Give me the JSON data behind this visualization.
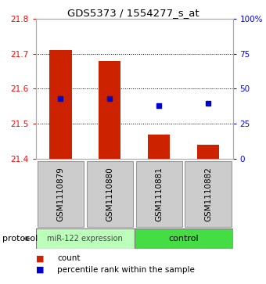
{
  "title": "GDS5373 / 1554277_s_at",
  "samples": [
    "GSM1110879",
    "GSM1110880",
    "GSM1110881",
    "GSM1110882"
  ],
  "bar_bottoms": [
    21.4,
    21.4,
    21.4,
    21.4
  ],
  "bar_tops": [
    21.71,
    21.68,
    21.47,
    21.44
  ],
  "percentile_values": [
    21.572,
    21.572,
    21.553,
    21.558
  ],
  "bar_color": "#cc2200",
  "percentile_color": "#0000cc",
  "ylim_left": [
    21.4,
    21.8
  ],
  "ylim_right": [
    0,
    100
  ],
  "yticks_left": [
    21.4,
    21.5,
    21.6,
    21.7,
    21.8
  ],
  "yticks_right": [
    0,
    25,
    50,
    75,
    100
  ],
  "ytick_labels_right": [
    "0",
    "25",
    "50",
    "75",
    "100%"
  ],
  "group0_label": "miR-122 expression",
  "group1_label": "control",
  "group0_color": "#bbffbb",
  "group1_color": "#44dd44",
  "group_label_prefix": "protocol",
  "background_color": "#ffffff",
  "label_area_bg": "#cccccc",
  "bar_width": 0.45,
  "legend_count_label": "count",
  "legend_pct_label": "percentile rank within the sample"
}
